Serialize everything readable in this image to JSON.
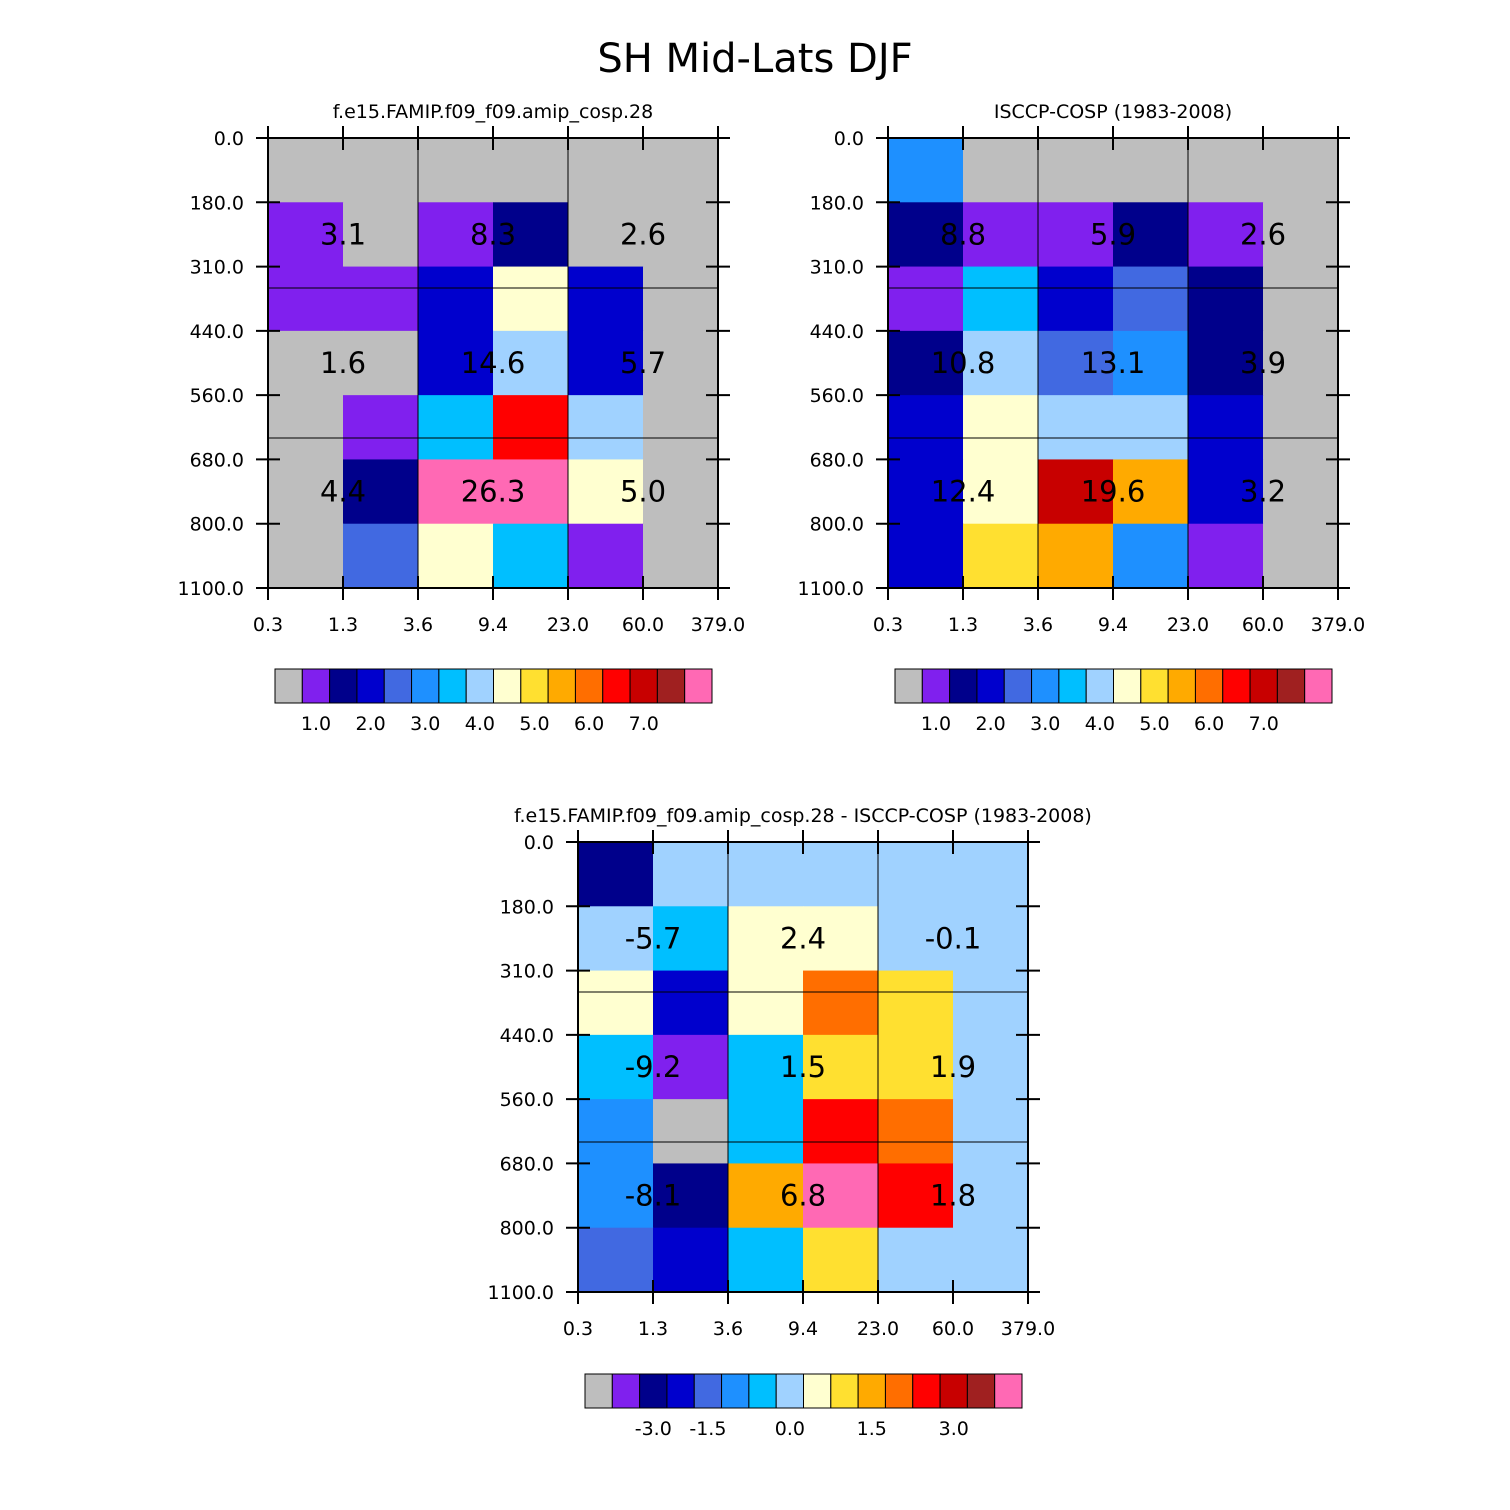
{
  "figure_title": "SH Mid-Lats DJF",
  "palette": [
    "#bebebe",
    "#8020ee",
    "#00008b",
    "#0000cd",
    "#4169e1",
    "#1e90ff",
    "#00bfff",
    "#a0d2ff",
    "#ffffd0",
    "#ffe030",
    "#ffaa00",
    "#ff6e00",
    "#ff0000",
    "#c80000",
    "#a02020",
    "#ff69b4"
  ],
  "chart_data": [
    {
      "type": "heatmap",
      "title": "f.e15.FAMIP.f09_f09.amip_cosp.28",
      "x_ticks": [
        "0.3",
        "1.3",
        "3.6",
        "9.4",
        "23.0",
        "60.0",
        "379.0"
      ],
      "y_ticks": [
        "0.0",
        "180.0",
        "310.0",
        "440.0",
        "560.0",
        "680.0",
        "800.0",
        "1100.0"
      ],
      "cell_colors": [
        [
          0,
          0,
          0,
          0,
          0,
          0
        ],
        [
          1,
          0,
          1,
          2,
          0,
          0
        ],
        [
          1,
          1,
          3,
          8,
          3,
          0
        ],
        [
          0,
          0,
          3,
          7,
          3,
          0
        ],
        [
          0,
          1,
          6,
          12,
          7,
          0
        ],
        [
          0,
          2,
          15,
          15,
          8,
          0
        ],
        [
          0,
          4,
          8,
          6,
          1,
          0
        ]
      ],
      "group_values": [
        [
          "3.1",
          "8.3",
          "2.6"
        ],
        [
          "1.6",
          "14.6",
          "5.7"
        ],
        [
          "4.4",
          "26.3",
          "5.0"
        ]
      ],
      "colorbar": {
        "labels": [
          "1.0",
          "2.0",
          "3.0",
          "4.0",
          "5.0",
          "6.0",
          "7.0"
        ],
        "label_positions": [
          1.5,
          3.5,
          5.5,
          7.5,
          9.5,
          11.5,
          13.5
        ]
      }
    },
    {
      "type": "heatmap",
      "title": "ISCCP-COSP (1983-2008)",
      "x_ticks": [
        "0.3",
        "1.3",
        "3.6",
        "9.4",
        "23.0",
        "60.0",
        "379.0"
      ],
      "y_ticks": [
        "0.0",
        "180.0",
        "310.0",
        "440.0",
        "560.0",
        "680.0",
        "800.0",
        "1100.0"
      ],
      "cell_colors": [
        [
          5,
          0,
          0,
          0,
          0,
          0
        ],
        [
          2,
          1,
          1,
          2,
          1,
          0
        ],
        [
          1,
          6,
          3,
          4,
          2,
          0
        ],
        [
          2,
          7,
          4,
          5,
          2,
          0
        ],
        [
          3,
          8,
          7,
          7,
          3,
          0
        ],
        [
          3,
          8,
          13,
          10,
          3,
          0
        ],
        [
          3,
          9,
          10,
          5,
          1,
          0
        ]
      ],
      "group_values": [
        [
          "8.8",
          "5.9",
          "2.6"
        ],
        [
          "10.8",
          "13.1",
          "3.9"
        ],
        [
          "12.4",
          "19.6",
          "3.2"
        ]
      ],
      "colorbar": {
        "labels": [
          "1.0",
          "2.0",
          "3.0",
          "4.0",
          "5.0",
          "6.0",
          "7.0"
        ],
        "label_positions": [
          1.5,
          3.5,
          5.5,
          7.5,
          9.5,
          11.5,
          13.5
        ]
      }
    },
    {
      "type": "heatmap",
      "title": "f.e15.FAMIP.f09_f09.amip_cosp.28 - ISCCP-COSP (1983-2008)",
      "x_ticks": [
        "0.3",
        "1.3",
        "3.6",
        "9.4",
        "23.0",
        "60.0",
        "379.0"
      ],
      "y_ticks": [
        "0.0",
        "180.0",
        "310.0",
        "440.0",
        "560.0",
        "680.0",
        "800.0",
        "1100.0"
      ],
      "cell_colors": [
        [
          2,
          7,
          7,
          7,
          7,
          7
        ],
        [
          7,
          6,
          8,
          8,
          7,
          7
        ],
        [
          8,
          3,
          8,
          11,
          9,
          7
        ],
        [
          6,
          1,
          6,
          9,
          9,
          7
        ],
        [
          5,
          0,
          6,
          12,
          11,
          7
        ],
        [
          5,
          2,
          10,
          15,
          12,
          7
        ],
        [
          4,
          3,
          6,
          9,
          7,
          7
        ]
      ],
      "group_values": [
        [
          "-5.7",
          "2.4",
          "-0.1"
        ],
        [
          "-9.2",
          "1.5",
          "1.9"
        ],
        [
          "-8.1",
          "6.8",
          "1.8"
        ]
      ],
      "colorbar": {
        "labels": [
          "-3.0",
          "-1.5",
          "0.0",
          "1.5",
          "3.0"
        ],
        "label_positions": [
          2.5,
          4.5,
          7.5,
          10.5,
          13.5
        ]
      }
    }
  ]
}
